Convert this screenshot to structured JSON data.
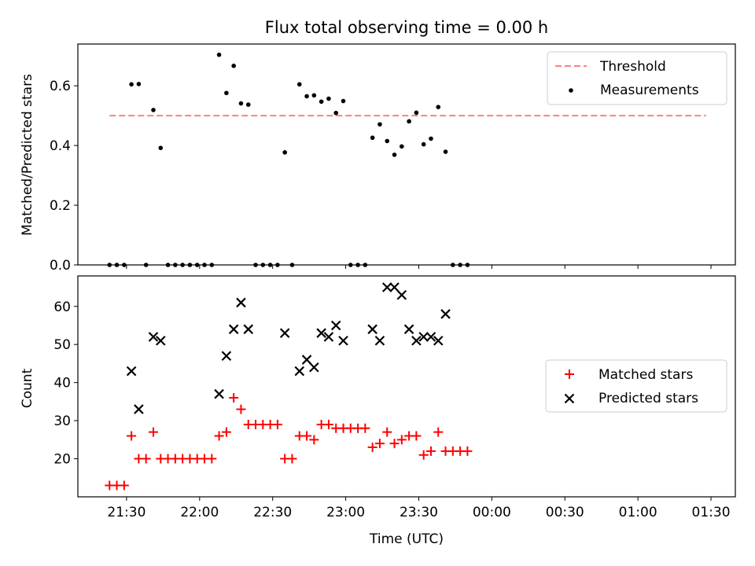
{
  "chart_data": [
    {
      "type": "scatter",
      "title": "Flux total observing time = 0.00 h",
      "xlabel": "",
      "ylabel": "Matched/Predicted stars",
      "xlim": [
        "21:10",
        "01:40"
      ],
      "ylim": [
        0,
        0.74
      ],
      "xticks": [
        "21:30",
        "22:00",
        "22:30",
        "23:00",
        "23:30",
        "00:00",
        "00:30",
        "01:00",
        "01:30"
      ],
      "yticks": [
        "0.0",
        "0.2",
        "0.4",
        "0.6"
      ],
      "legend_position": "upper right",
      "threshold": {
        "name": "Threshold",
        "value": 0.5,
        "x_start": "21:23",
        "x_end": "01:28",
        "color": "#ff7f7f",
        "style": "dashed"
      },
      "series": [
        {
          "name": "Measurements",
          "color": "#000000",
          "marker": "dot",
          "points": [
            [
              "21:23",
              0.0
            ],
            [
              "21:26",
              0.0
            ],
            [
              "21:29",
              0.0
            ],
            [
              "21:32",
              0.605
            ],
            [
              "21:35",
              0.606
            ],
            [
              "21:38",
              0.0
            ],
            [
              "21:41",
              0.519
            ],
            [
              "21:44",
              0.392
            ],
            [
              "21:47",
              0.0
            ],
            [
              "21:50",
              0.0
            ],
            [
              "21:53",
              0.0
            ],
            [
              "21:56",
              0.0
            ],
            [
              "21:59",
              0.0
            ],
            [
              "22:02",
              0.0
            ],
            [
              "22:05",
              0.0
            ],
            [
              "22:08",
              0.704
            ],
            [
              "22:11",
              0.576
            ],
            [
              "22:14",
              0.667
            ],
            [
              "22:17",
              0.541
            ],
            [
              "22:20",
              0.537
            ],
            [
              "22:23",
              0.0
            ],
            [
              "22:26",
              0.0
            ],
            [
              "22:29",
              0.0
            ],
            [
              "22:32",
              0.0
            ],
            [
              "22:35",
              0.377
            ],
            [
              "22:38",
              0.0
            ],
            [
              "22:41",
              0.605
            ],
            [
              "22:44",
              0.565
            ],
            [
              "22:47",
              0.568
            ],
            [
              "22:50",
              0.547
            ],
            [
              "22:53",
              0.557
            ],
            [
              "22:56",
              0.509
            ],
            [
              "22:59",
              0.549
            ],
            [
              "23:02",
              0.0
            ],
            [
              "23:05",
              0.0
            ],
            [
              "23:08",
              0.0
            ],
            [
              "23:11",
              0.426
            ],
            [
              "23:14",
              0.471
            ],
            [
              "23:17",
              0.415
            ],
            [
              "23:20",
              0.369
            ],
            [
              "23:23",
              0.397
            ],
            [
              "23:26",
              0.481
            ],
            [
              "23:29",
              0.51
            ],
            [
              "23:32",
              0.404
            ],
            [
              "23:35",
              0.423
            ],
            [
              "23:38",
              0.529
            ],
            [
              "23:41",
              0.379
            ],
            [
              "23:44",
              0.0
            ],
            [
              "23:47",
              0.0
            ],
            [
              "23:50",
              0.0
            ]
          ]
        }
      ]
    },
    {
      "type": "scatter",
      "title": "",
      "xlabel": "Time (UTC)",
      "ylabel": "Count",
      "xlim": [
        "21:10",
        "01:40"
      ],
      "ylim": [
        10,
        68
      ],
      "xticks": [
        "21:30",
        "22:00",
        "22:30",
        "23:00",
        "23:30",
        "00:00",
        "00:30",
        "01:00",
        "01:30"
      ],
      "yticks": [
        "20",
        "30",
        "40",
        "50",
        "60"
      ],
      "legend_position": "center right",
      "series": [
        {
          "name": "Matched stars",
          "color": "#ff0000",
          "marker": "plus",
          "points": [
            [
              "21:23",
              13
            ],
            [
              "21:26",
              13
            ],
            [
              "21:29",
              13
            ],
            [
              "21:32",
              26
            ],
            [
              "21:35",
              20
            ],
            [
              "21:38",
              20
            ],
            [
              "21:41",
              27
            ],
            [
              "21:44",
              20
            ],
            [
              "21:47",
              20
            ],
            [
              "21:50",
              20
            ],
            [
              "21:53",
              20
            ],
            [
              "21:56",
              20
            ],
            [
              "21:59",
              20
            ],
            [
              "22:02",
              20
            ],
            [
              "22:05",
              20
            ],
            [
              "22:08",
              26
            ],
            [
              "22:11",
              27
            ],
            [
              "22:14",
              36
            ],
            [
              "22:17",
              33
            ],
            [
              "22:20",
              29
            ],
            [
              "22:23",
              29
            ],
            [
              "22:26",
              29
            ],
            [
              "22:29",
              29
            ],
            [
              "22:32",
              29
            ],
            [
              "22:35",
              20
            ],
            [
              "22:38",
              20
            ],
            [
              "22:41",
              26
            ],
            [
              "22:44",
              26
            ],
            [
              "22:47",
              25
            ],
            [
              "22:50",
              29
            ],
            [
              "22:53",
              29
            ],
            [
              "22:56",
              28
            ],
            [
              "22:59",
              28
            ],
            [
              "23:02",
              28
            ],
            [
              "23:05",
              28
            ],
            [
              "23:08",
              28
            ],
            [
              "23:11",
              23
            ],
            [
              "23:14",
              24
            ],
            [
              "23:17",
              27
            ],
            [
              "23:20",
              24
            ],
            [
              "23:23",
              25
            ],
            [
              "23:26",
              26
            ],
            [
              "23:29",
              26
            ],
            [
              "23:32",
              21
            ],
            [
              "23:35",
              22
            ],
            [
              "23:38",
              27
            ],
            [
              "23:41",
              22
            ],
            [
              "23:44",
              22
            ],
            [
              "23:47",
              22
            ],
            [
              "23:50",
              22
            ]
          ]
        },
        {
          "name": "Predicted stars",
          "color": "#000000",
          "marker": "x",
          "points": [
            [
              "21:32",
              43
            ],
            [
              "21:35",
              33
            ],
            [
              "21:41",
              52
            ],
            [
              "21:44",
              51
            ],
            [
              "22:08",
              37
            ],
            [
              "22:11",
              47
            ],
            [
              "22:14",
              54
            ],
            [
              "22:17",
              61
            ],
            [
              "22:20",
              54
            ],
            [
              "22:35",
              53
            ],
            [
              "22:41",
              43
            ],
            [
              "22:44",
              46
            ],
            [
              "22:47",
              44
            ],
            [
              "22:50",
              53
            ],
            [
              "22:53",
              52
            ],
            [
              "22:56",
              55
            ],
            [
              "22:59",
              51
            ],
            [
              "23:11",
              54
            ],
            [
              "23:14",
              51
            ],
            [
              "23:17",
              65
            ],
            [
              "23:20",
              65
            ],
            [
              "23:23",
              63
            ],
            [
              "23:26",
              54
            ],
            [
              "23:29",
              51
            ],
            [
              "23:32",
              52
            ],
            [
              "23:35",
              52
            ],
            [
              "23:38",
              51
            ],
            [
              "23:41",
              58
            ]
          ]
        }
      ]
    }
  ]
}
